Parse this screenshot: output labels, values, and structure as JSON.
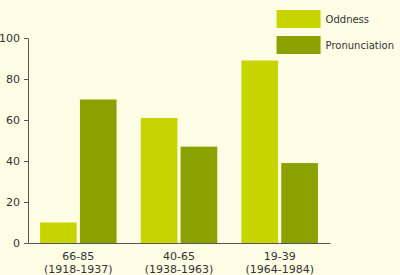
{
  "chart_data": {
    "type": "bar",
    "categories": [
      "66-85\n(1918-1937)",
      "40-65\n(1938-1963)",
      "19-39\n(1964-1984)"
    ],
    "series": [
      {
        "name": "Oddness",
        "color": "#c8d400",
        "values": [
          10,
          61,
          89
        ]
      },
      {
        "name": "Pronunciation",
        "color": "#8aa200",
        "values": [
          70,
          47,
          39
        ]
      }
    ],
    "ylim": [
      0,
      100
    ],
    "yticks": [
      0,
      20,
      40,
      60,
      80,
      100
    ],
    "grid": false,
    "legend": "top-right"
  }
}
